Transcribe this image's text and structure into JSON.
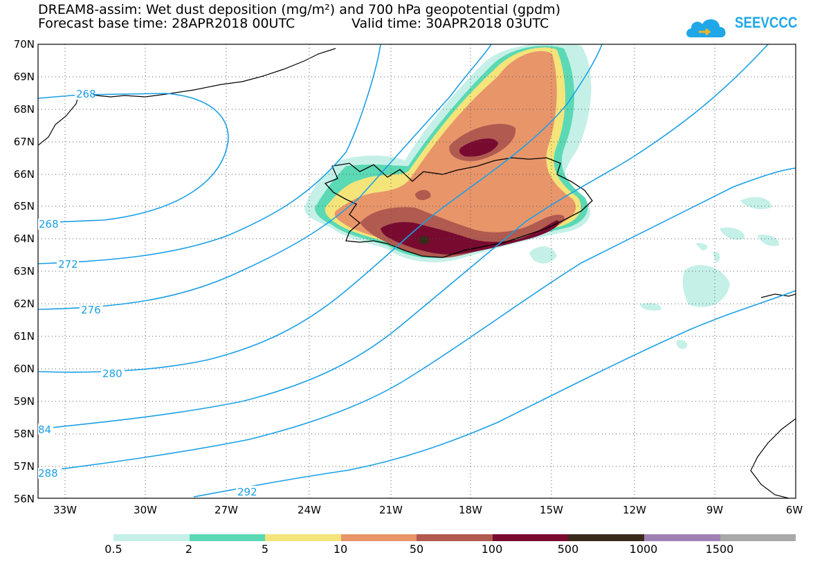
{
  "title": {
    "line1": "DREAM8-assim: Wet dust deposition (mg/m²) and 700 hPa geopotential (gpdm)",
    "base_time": "Forecast base time: 28APR2018 00UTC",
    "valid_time": "Valid time: 30APR2018 03UTC"
  },
  "logo": {
    "text": "SEEVCCC",
    "color": "#1fa7e8"
  },
  "map": {
    "lat_range": [
      56,
      70
    ],
    "lon_range": [
      -34.5,
      -6
    ],
    "lat_labels": [
      "70N",
      "69N",
      "68N",
      "67N",
      "66N",
      "65N",
      "64N",
      "63N",
      "62N",
      "61N",
      "60N",
      "59N",
      "58N",
      "57N",
      "56N"
    ],
    "lon_labels": [
      "33W",
      "30W",
      "27W",
      "24W",
      "21W",
      "18W",
      "15W",
      "12W",
      "9W",
      "6W"
    ],
    "contour_color": "#1a9fe6",
    "contour_labels": [
      "268",
      "268",
      "272",
      "276",
      "280",
      "84",
      "288",
      "292"
    ]
  },
  "colorbar": {
    "colors": [
      "#c4f0e8",
      "#5ad9b4",
      "#f4e47a",
      "#e8956a",
      "#b05a50",
      "#780a30",
      "#3a2a1a",
      "#a080b4",
      "#a8a8a8"
    ],
    "labels": [
      "0.5",
      "2",
      "5",
      "10",
      "50",
      "100",
      "500",
      "1000",
      "1500"
    ]
  }
}
